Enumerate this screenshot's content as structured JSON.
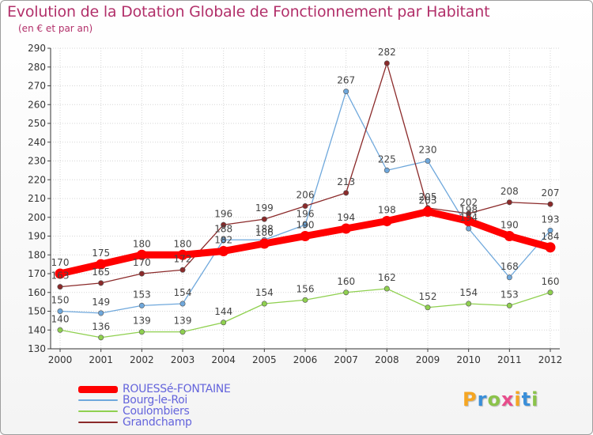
{
  "title": "Evolution de la Dotation Globale de Fonctionnement par Habitant",
  "subtitle": "(en € et par an)",
  "logo": [
    "P",
    "r",
    "o",
    "x",
    "i",
    "t",
    "i"
  ],
  "logo_colors": [
    "#f5a623",
    "#3a8fd9",
    "#8bc34a",
    "#e84c8b",
    "#f5a623",
    "#3a8fd9",
    "#8bc34a"
  ],
  "chart_data": {
    "type": "line",
    "title": "Evolution de la Dotation Globale de Fonctionnement par Habitant",
    "subtitle": "(en € et par an)",
    "xlabel": "",
    "ylabel": "",
    "x": [
      "2000",
      "2001",
      "2002",
      "2003",
      "2004",
      "2005",
      "2006",
      "2007",
      "2008",
      "2009",
      "2010",
      "2011",
      "2012"
    ],
    "ylim": [
      130,
      290
    ],
    "yticks": [
      130,
      140,
      150,
      160,
      170,
      180,
      190,
      200,
      210,
      220,
      230,
      240,
      250,
      260,
      270,
      280,
      290
    ],
    "series": [
      {
        "name": "ROUESSé-FONTAINE",
        "color": "#ff0000",
        "values": [
          170,
          175,
          180,
          180,
          182,
          186,
          190,
          194,
          198,
          203,
          198,
          190,
          184
        ]
      },
      {
        "name": "Bourg-le-Roi",
        "color": "#6fa8dc",
        "values": [
          150,
          149,
          153,
          154,
          188,
          188,
          196,
          267,
          225,
          230,
          194,
          168,
          193
        ]
      },
      {
        "name": "Coulombiers",
        "color": "#8fd04f",
        "values": [
          140,
          136,
          139,
          139,
          144,
          154,
          156,
          160,
          162,
          152,
          154,
          153,
          160
        ]
      },
      {
        "name": "Grandchamp",
        "color": "#8b2a2a",
        "values": [
          163,
          165,
          170,
          172,
          196,
          199,
          206,
          213,
          282,
          205,
          202,
          208,
          207
        ]
      }
    ]
  }
}
